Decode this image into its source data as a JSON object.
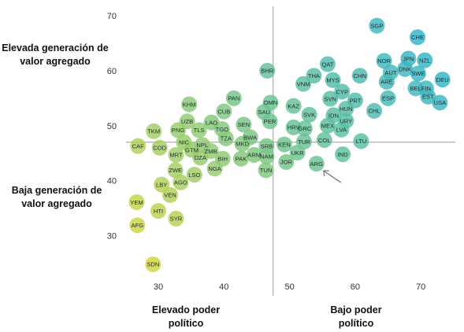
{
  "labels": {
    "high_value_added": "Elevada generación de valor agregado",
    "low_value_added": "Baja generación de valor agregado",
    "high_political_power": "Elevado poder político",
    "low_political_power": "Bajo poder político"
  },
  "chart_data": {
    "type": "scatter",
    "title": "",
    "xlabel": "",
    "ylabel": "",
    "xlim": [
      24,
      74
    ],
    "ylim": [
      22,
      72
    ],
    "x_ticks": [
      30,
      40,
      50,
      60,
      70
    ],
    "y_ticks": [
      30,
      40,
      50,
      60,
      70
    ],
    "reference_lines": {
      "x": 47.5,
      "y": 47
    },
    "highlight_arrow": {
      "target": "ARG"
    },
    "color_scale": {
      "low": "#e6d92c",
      "mid": "#6cc48c",
      "high": "#22afd9"
    },
    "points": [
      {
        "label": "SGP",
        "x": 63.3,
        "y": 68.2
      },
      {
        "label": "CHE",
        "x": 69.5,
        "y": 66.1
      },
      {
        "label": "JPN",
        "x": 68.1,
        "y": 62.2
      },
      {
        "label": "NZL",
        "x": 70.6,
        "y": 61.9
      },
      {
        "label": "NOR",
        "x": 64.4,
        "y": 61.8
      },
      {
        "label": "DNK",
        "x": 67.6,
        "y": 60.3
      },
      {
        "label": "SWE",
        "x": 69.6,
        "y": 59.5
      },
      {
        "label": "AUT",
        "x": 65.4,
        "y": 59.7
      },
      {
        "label": "DEU",
        "x": 73.3,
        "y": 58.4
      },
      {
        "label": "ARE",
        "x": 64.8,
        "y": 58.0
      },
      {
        "label": "BEL",
        "x": 69.2,
        "y": 56.8
      },
      {
        "label": "FIN",
        "x": 70.8,
        "y": 56.8
      },
      {
        "label": "EST",
        "x": 71.1,
        "y": 55.3
      },
      {
        "label": "USA",
        "x": 72.9,
        "y": 54.2
      },
      {
        "label": "ESP",
        "x": 65.0,
        "y": 55.0
      },
      {
        "label": "CHN",
        "x": 60.7,
        "y": 59.1
      },
      {
        "label": "CHL",
        "x": 62.9,
        "y": 52.7
      },
      {
        "label": "QAT",
        "x": 55.8,
        "y": 61.2
      },
      {
        "label": "THA",
        "x": 53.7,
        "y": 59.1
      },
      {
        "label": "MYS",
        "x": 56.6,
        "y": 58.3
      },
      {
        "label": "VNM",
        "x": 52.1,
        "y": 57.6
      },
      {
        "label": "CYP",
        "x": 58.0,
        "y": 56.2
      },
      {
        "label": "PRT",
        "x": 60.0,
        "y": 54.6
      },
      {
        "label": "SVN",
        "x": 56.2,
        "y": 54.9
      },
      {
        "label": "HUN",
        "x": 58.6,
        "y": 53.1
      },
      {
        "label": "IDN",
        "x": 56.7,
        "y": 51.9
      },
      {
        "label": "URY",
        "x": 58.6,
        "y": 50.9
      },
      {
        "label": "KAZ",
        "x": 50.6,
        "y": 53.6
      },
      {
        "label": "SVK",
        "x": 53.0,
        "y": 52.0
      },
      {
        "label": "MEX",
        "x": 55.8,
        "y": 50.0
      },
      {
        "label": "LVA",
        "x": 57.9,
        "y": 49.3
      },
      {
        "label": "LTU",
        "x": 60.9,
        "y": 47.2
      },
      {
        "label": "COL",
        "x": 55.3,
        "y": 47.4
      },
      {
        "label": "IND",
        "x": 58.1,
        "y": 44.8
      },
      {
        "label": "ARG",
        "x": 54.1,
        "y": 43.1
      },
      {
        "label": "BHR",
        "x": 46.6,
        "y": 60.0
      },
      {
        "label": "OMN",
        "x": 47.1,
        "y": 54.2
      },
      {
        "label": "SAU",
        "x": 46.1,
        "y": 52.5
      },
      {
        "label": "PER",
        "x": 47.0,
        "y": 50.8
      },
      {
        "label": "HRV",
        "x": 50.6,
        "y": 49.7
      },
      {
        "label": "GRC",
        "x": 52.3,
        "y": 49.5
      },
      {
        "label": "TUR",
        "x": 52.2,
        "y": 47.1
      },
      {
        "label": "KEN",
        "x": 49.2,
        "y": 46.6
      },
      {
        "label": "SRB",
        "x": 46.5,
        "y": 46.3
      },
      {
        "label": "UKR",
        "x": 51.2,
        "y": 45.1
      },
      {
        "label": "ARM",
        "x": 44.6,
        "y": 44.7
      },
      {
        "label": "NAM",
        "x": 46.5,
        "y": 44.4
      },
      {
        "label": "JOR",
        "x": 49.5,
        "y": 43.4
      },
      {
        "label": "TUN",
        "x": 46.4,
        "y": 41.9
      },
      {
        "label": "PAN",
        "x": 41.5,
        "y": 55.0
      },
      {
        "label": "KHM",
        "x": 34.7,
        "y": 53.9
      },
      {
        "label": "CUB",
        "x": 40.0,
        "y": 52.6
      },
      {
        "label": "UZB",
        "x": 34.4,
        "y": 50.8
      },
      {
        "label": "LAO",
        "x": 38.1,
        "y": 50.6
      },
      {
        "label": "SEN",
        "x": 43.0,
        "y": 50.2
      },
      {
        "label": "PNG",
        "x": 33.0,
        "y": 49.2
      },
      {
        "label": "TLS",
        "x": 36.2,
        "y": 49.2
      },
      {
        "label": "TGO",
        "x": 39.7,
        "y": 49.4
      },
      {
        "label": "TKM",
        "x": 29.3,
        "y": 49.0
      },
      {
        "label": "TZA",
        "x": 40.3,
        "y": 47.7
      },
      {
        "label": "BWA",
        "x": 44.0,
        "y": 47.9
      },
      {
        "label": "NIC",
        "x": 33.9,
        "y": 47.0
      },
      {
        "label": "NPL",
        "x": 36.7,
        "y": 46.5
      },
      {
        "label": "MKD",
        "x": 42.8,
        "y": 46.7
      },
      {
        "label": "CAF",
        "x": 26.9,
        "y": 46.3
      },
      {
        "label": "COD",
        "x": 30.2,
        "y": 46.0
      },
      {
        "label": "GTM",
        "x": 35.1,
        "y": 45.6
      },
      {
        "label": "ZMB",
        "x": 38.0,
        "y": 45.4
      },
      {
        "label": "MRT",
        "x": 32.7,
        "y": 44.7
      },
      {
        "label": "DZA",
        "x": 36.4,
        "y": 44.2
      },
      {
        "label": "BIH",
        "x": 39.8,
        "y": 44.0
      },
      {
        "label": "PAK",
        "x": 42.6,
        "y": 44.0
      },
      {
        "label": "ZWE",
        "x": 32.6,
        "y": 41.9
      },
      {
        "label": "LSO",
        "x": 35.5,
        "y": 41.1
      },
      {
        "label": "NGA",
        "x": 38.6,
        "y": 42.2
      },
      {
        "label": "AGO",
        "x": 33.4,
        "y": 39.7
      },
      {
        "label": "LBY",
        "x": 30.5,
        "y": 39.3
      },
      {
        "label": "VEN",
        "x": 31.8,
        "y": 37.4
      },
      {
        "label": "YEM",
        "x": 26.7,
        "y": 36.1
      },
      {
        "label": "HTI",
        "x": 30.0,
        "y": 34.5
      },
      {
        "label": "SYR",
        "x": 32.7,
        "y": 33.1
      },
      {
        "label": "AFG",
        "x": 26.8,
        "y": 31.9
      },
      {
        "label": "SDN",
        "x": 29.2,
        "y": 24.8
      }
    ]
  }
}
